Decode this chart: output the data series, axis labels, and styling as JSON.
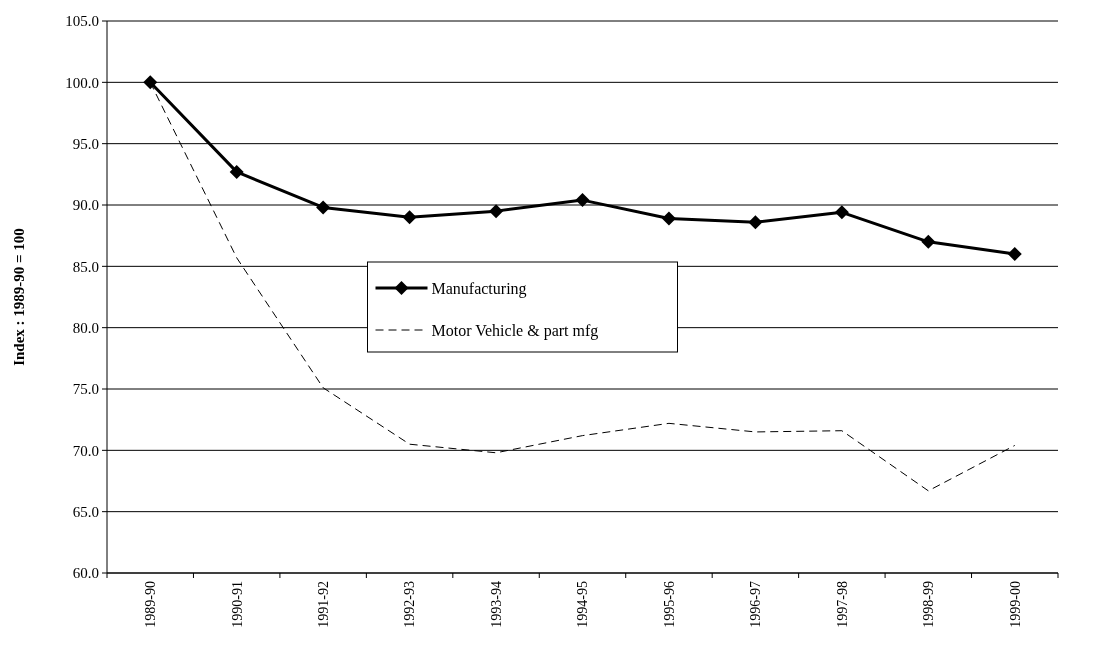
{
  "chart_data": {
    "type": "line",
    "ylabel": "Index : 1989-90 = 100",
    "categories": [
      "1989-90",
      "1990-91",
      "1991-92",
      "1992-93",
      "1993-94",
      "1994-95",
      "1995-96",
      "1996-97",
      "1997-98",
      "1998-99",
      "1999-00"
    ],
    "series": [
      {
        "name": "Manufacturing",
        "color": "#000000",
        "marker": "diamond",
        "line_style": "solid",
        "values": [
          100,
          92.7,
          89.8,
          89.0,
          89.5,
          90.4,
          88.9,
          88.6,
          89.4,
          87.0,
          86.0
        ]
      },
      {
        "name": "Motor Vehicle & part mfg",
        "color": "#000000",
        "marker": "none",
        "line_style": "dashed",
        "values": [
          100,
          85.7,
          75.1,
          70.5,
          69.8,
          71.2,
          72.2,
          71.5,
          71.6,
          66.7,
          70.4
        ]
      }
    ],
    "ylim": [
      60,
      105
    ],
    "yticks": [
      {
        "value": 60,
        "label": "60.0"
      },
      {
        "value": 65,
        "label": "65.0"
      },
      {
        "value": 70,
        "label": "70.0"
      },
      {
        "value": 75,
        "label": "75.0"
      },
      {
        "value": 80,
        "label": "80.0"
      },
      {
        "value": 85,
        "label": "85.0"
      },
      {
        "value": 90,
        "label": "90.0"
      },
      {
        "value": 95,
        "label": "95.0"
      },
      {
        "value": 100,
        "label": "100.0"
      },
      {
        "value": 105,
        "label": "105.0"
      }
    ],
    "grid": "y",
    "legend": "center"
  }
}
